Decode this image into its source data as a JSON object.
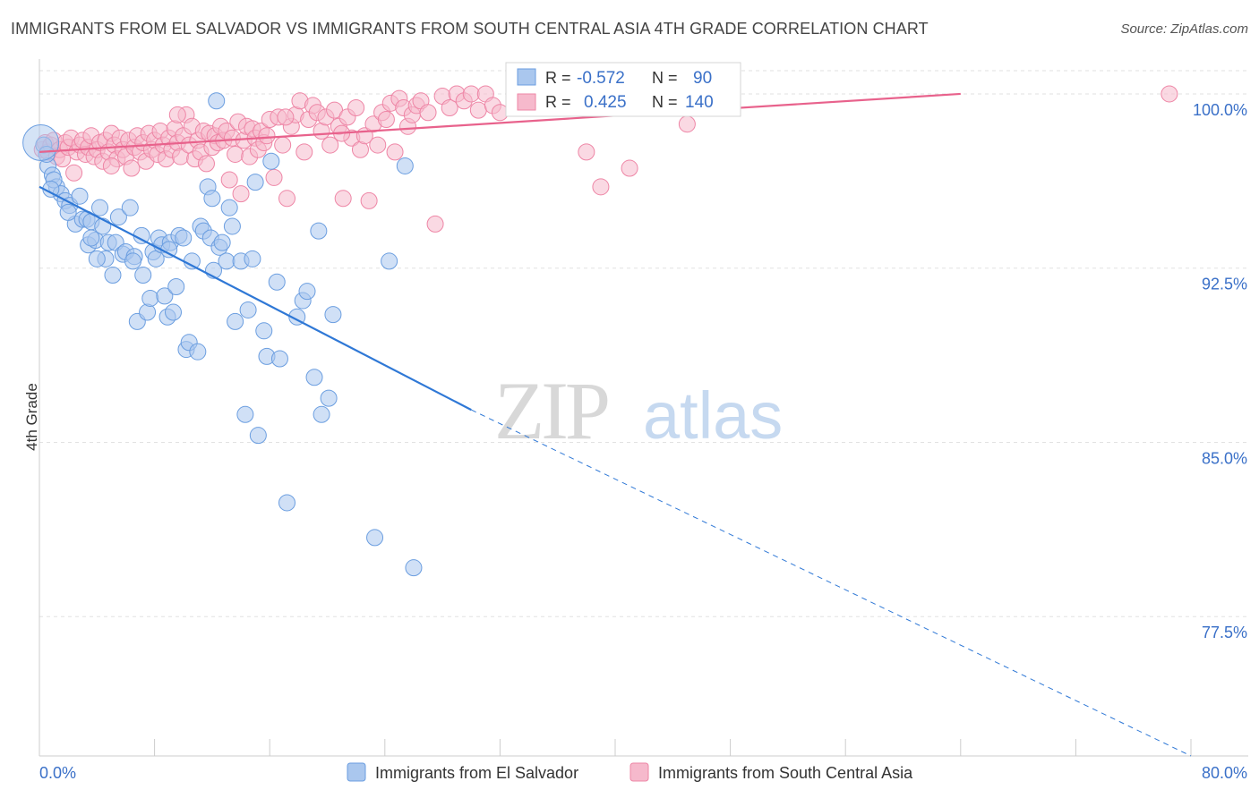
{
  "header": {
    "title": "IMMIGRANTS FROM EL SALVADOR VS IMMIGRANTS FROM SOUTH CENTRAL ASIA 4TH GRADE CORRELATION CHART",
    "source": "Source: ZipAtlas.com"
  },
  "watermark": {
    "zip": "ZIP",
    "atlas": "atlas"
  },
  "stats": {
    "blue": {
      "r_label": "R =",
      "r_value": "-0.572",
      "n_label": "N =",
      "n_value": "90"
    },
    "pink": {
      "r_label": "R =",
      "r_value": "0.425",
      "n_label": "N =",
      "n_value": "140"
    }
  },
  "colors": {
    "blue_fill": "#aac7ee",
    "blue_stroke": "#6b9ee0",
    "blue_line": "#2f78d6",
    "pink_fill": "#f6b9cc",
    "pink_stroke": "#ee86a6",
    "pink_line": "#e8628c",
    "value_text": "#3a70c8",
    "grid": "#e2e2e2"
  },
  "chart_data": {
    "type": "scatter",
    "title": "IMMIGRANTS FROM EL SALVADOR VS IMMIGRANTS FROM SOUTH CENTRAL ASIA 4TH GRADE CORRELATION CHART",
    "xlabel": "",
    "ylabel": "4th Grade",
    "xlim": [
      0,
      80
    ],
    "ylim": [
      71.5,
      101.5
    ],
    "x_tick_labels": [
      "0.0%",
      "80.0%"
    ],
    "y_ticks": [
      77.5,
      85.0,
      92.5,
      100.0
    ],
    "y_tick_labels": [
      "77.5%",
      "85.0%",
      "92.5%",
      "100.0%"
    ],
    "grid": "horizontal dashed",
    "legend_position": "bottom-center",
    "series": [
      {
        "name": "Immigrants from El Salvador",
        "color": "#aac7ee",
        "trend": {
          "x": [
            0,
            30
          ],
          "y": [
            96.0,
            86.4
          ],
          "dashed_to": [
            80,
            71.5
          ]
        },
        "points": [
          [
            0.3,
            97.8
          ],
          [
            0.6,
            96.9
          ],
          [
            0.9,
            96.5
          ],
          [
            1.2,
            96.0
          ],
          [
            1.5,
            95.7
          ],
          [
            1.8,
            95.4
          ],
          [
            2.1,
            95.2
          ],
          [
            2.5,
            94.4
          ],
          [
            2.8,
            95.6
          ],
          [
            3.0,
            94.6
          ],
          [
            3.3,
            94.6
          ],
          [
            3.4,
            93.5
          ],
          [
            3.6,
            94.5
          ],
          [
            3.9,
            93.7
          ],
          [
            4.2,
            95.1
          ],
          [
            4.4,
            94.3
          ],
          [
            4.6,
            92.9
          ],
          [
            4.8,
            93.6
          ],
          [
            5.1,
            92.2
          ],
          [
            5.3,
            93.6
          ],
          [
            5.5,
            94.7
          ],
          [
            5.8,
            93.1
          ],
          [
            6.0,
            93.2
          ],
          [
            6.3,
            95.1
          ],
          [
            6.6,
            93.0
          ],
          [
            6.8,
            90.2
          ],
          [
            7.1,
            93.9
          ],
          [
            7.2,
            92.2
          ],
          [
            7.5,
            90.6
          ],
          [
            7.7,
            91.2
          ],
          [
            7.9,
            93.2
          ],
          [
            8.1,
            92.9
          ],
          [
            8.3,
            93.8
          ],
          [
            8.5,
            93.5
          ],
          [
            8.7,
            91.3
          ],
          [
            8.9,
            90.4
          ],
          [
            9.1,
            93.6
          ],
          [
            9.3,
            90.6
          ],
          [
            9.5,
            91.7
          ],
          [
            9.7,
            93.9
          ],
          [
            10.0,
            93.8
          ],
          [
            10.2,
            89.0
          ],
          [
            10.4,
            89.3
          ],
          [
            10.6,
            92.8
          ],
          [
            11.0,
            88.9
          ],
          [
            11.2,
            94.3
          ],
          [
            11.4,
            94.1
          ],
          [
            11.7,
            96.0
          ],
          [
            11.9,
            93.8
          ],
          [
            12.1,
            92.4
          ],
          [
            12.3,
            99.7
          ],
          [
            12.5,
            93.4
          ],
          [
            12.7,
            93.6
          ],
          [
            13.0,
            92.8
          ],
          [
            13.2,
            95.1
          ],
          [
            13.4,
            94.3
          ],
          [
            13.6,
            90.2
          ],
          [
            14.0,
            92.8
          ],
          [
            14.3,
            86.2
          ],
          [
            14.5,
            90.7
          ],
          [
            14.8,
            92.9
          ],
          [
            15.2,
            85.3
          ],
          [
            15.6,
            89.8
          ],
          [
            15.8,
            88.7
          ],
          [
            16.1,
            97.1
          ],
          [
            16.5,
            91.9
          ],
          [
            16.7,
            88.6
          ],
          [
            17.2,
            82.4
          ],
          [
            17.9,
            90.4
          ],
          [
            18.3,
            91.1
          ],
          [
            18.6,
            91.5
          ],
          [
            19.1,
            87.8
          ],
          [
            19.4,
            94.1
          ],
          [
            19.6,
            86.2
          ],
          [
            20.1,
            86.9
          ],
          [
            20.4,
            90.5
          ],
          [
            23.3,
            80.9
          ],
          [
            24.3,
            92.8
          ],
          [
            25.4,
            96.9
          ],
          [
            26.0,
            79.6
          ],
          [
            0.5,
            97.4
          ],
          [
            1.0,
            96.3
          ],
          [
            2.0,
            94.9
          ],
          [
            4.0,
            92.9
          ],
          [
            6.5,
            92.8
          ],
          [
            9.0,
            93.3
          ],
          [
            12.0,
            95.5
          ],
          [
            15.0,
            96.2
          ],
          [
            0.8,
            95.9
          ],
          [
            3.6,
            93.8
          ]
        ]
      },
      {
        "name": "Immigrants from South Central Asia",
        "color": "#f6b9cc",
        "trend": {
          "x": [
            0,
            64
          ],
          "y": [
            97.5,
            100.0
          ]
        },
        "points": [
          [
            0.2,
            97.6
          ],
          [
            0.4,
            97.9
          ],
          [
            0.6,
            97.5
          ],
          [
            0.8,
            97.8
          ],
          [
            1.0,
            98.0
          ],
          [
            1.2,
            97.3
          ],
          [
            1.4,
            97.6
          ],
          [
            1.6,
            97.2
          ],
          [
            1.8,
            97.9
          ],
          [
            2.0,
            97.7
          ],
          [
            2.2,
            98.1
          ],
          [
            2.4,
            96.6
          ],
          [
            2.6,
            97.5
          ],
          [
            2.8,
            97.8
          ],
          [
            3.0,
            98.0
          ],
          [
            3.2,
            97.4
          ],
          [
            3.4,
            97.7
          ],
          [
            3.6,
            98.2
          ],
          [
            3.8,
            97.3
          ],
          [
            4.0,
            97.6
          ],
          [
            4.2,
            97.9
          ],
          [
            4.4,
            97.1
          ],
          [
            4.6,
            98.0
          ],
          [
            4.8,
            97.5
          ],
          [
            5.0,
            98.3
          ],
          [
            5.2,
            97.8
          ],
          [
            5.4,
            97.2
          ],
          [
            5.6,
            98.1
          ],
          [
            5.8,
            97.6
          ],
          [
            6.0,
            97.3
          ],
          [
            6.2,
            98.0
          ],
          [
            6.4,
            96.8
          ],
          [
            6.6,
            97.7
          ],
          [
            6.8,
            98.2
          ],
          [
            7.0,
            97.5
          ],
          [
            7.2,
            97.9
          ],
          [
            7.4,
            97.1
          ],
          [
            7.6,
            98.3
          ],
          [
            7.8,
            97.6
          ],
          [
            8.0,
            98.0
          ],
          [
            8.2,
            97.4
          ],
          [
            8.4,
            98.4
          ],
          [
            8.6,
            97.8
          ],
          [
            8.8,
            97.2
          ],
          [
            9.0,
            98.1
          ],
          [
            9.2,
            97.6
          ],
          [
            9.4,
            98.5
          ],
          [
            9.6,
            97.9
          ],
          [
            9.8,
            97.3
          ],
          [
            10.0,
            98.2
          ],
          [
            10.2,
            99.1
          ],
          [
            10.4,
            97.8
          ],
          [
            10.6,
            98.6
          ],
          [
            10.8,
            97.2
          ],
          [
            11.0,
            98.0
          ],
          [
            11.2,
            97.5
          ],
          [
            11.4,
            98.4
          ],
          [
            11.6,
            97.0
          ],
          [
            11.8,
            98.3
          ],
          [
            12.0,
            97.7
          ],
          [
            12.2,
            98.2
          ],
          [
            12.4,
            97.9
          ],
          [
            12.6,
            98.6
          ],
          [
            12.8,
            98.0
          ],
          [
            13.0,
            98.4
          ],
          [
            13.2,
            96.3
          ],
          [
            13.4,
            98.1
          ],
          [
            13.6,
            97.4
          ],
          [
            13.8,
            98.8
          ],
          [
            14.0,
            95.7
          ],
          [
            14.2,
            98.0
          ],
          [
            14.4,
            98.6
          ],
          [
            14.6,
            97.3
          ],
          [
            14.8,
            98.5
          ],
          [
            15.0,
            98.1
          ],
          [
            15.2,
            97.6
          ],
          [
            15.4,
            98.4
          ],
          [
            15.6,
            97.9
          ],
          [
            15.8,
            98.2
          ],
          [
            16.0,
            98.9
          ],
          [
            16.3,
            96.4
          ],
          [
            16.6,
            99.0
          ],
          [
            16.9,
            97.8
          ],
          [
            17.2,
            95.5
          ],
          [
            17.5,
            98.6
          ],
          [
            17.8,
            99.1
          ],
          [
            18.1,
            99.7
          ],
          [
            18.4,
            97.5
          ],
          [
            18.7,
            98.9
          ],
          [
            19.0,
            99.5
          ],
          [
            19.3,
            99.2
          ],
          [
            19.6,
            98.4
          ],
          [
            19.9,
            99.0
          ],
          [
            20.2,
            97.8
          ],
          [
            20.5,
            99.3
          ],
          [
            20.8,
            98.6
          ],
          [
            21.1,
            95.5
          ],
          [
            21.4,
            99.0
          ],
          [
            21.7,
            98.1
          ],
          [
            22.0,
            99.4
          ],
          [
            22.3,
            97.6
          ],
          [
            22.6,
            98.2
          ],
          [
            22.9,
            95.4
          ],
          [
            23.2,
            98.7
          ],
          [
            23.5,
            97.8
          ],
          [
            23.8,
            99.2
          ],
          [
            24.1,
            98.9
          ],
          [
            24.4,
            99.6
          ],
          [
            24.7,
            97.5
          ],
          [
            25.0,
            99.8
          ],
          [
            25.3,
            99.4
          ],
          [
            25.6,
            98.6
          ],
          [
            25.9,
            99.1
          ],
          [
            26.2,
            99.5
          ],
          [
            26.5,
            99.7
          ],
          [
            27.0,
            99.2
          ],
          [
            27.5,
            94.4
          ],
          [
            28.0,
            99.9
          ],
          [
            28.5,
            99.4
          ],
          [
            29.0,
            100.0
          ],
          [
            29.5,
            99.7
          ],
          [
            30.0,
            100.0
          ],
          [
            30.5,
            99.3
          ],
          [
            31.0,
            100.0
          ],
          [
            31.5,
            99.5
          ],
          [
            32.0,
            99.2
          ],
          [
            33.0,
            99.8
          ],
          [
            35.0,
            100.0
          ],
          [
            36.0,
            99.8
          ],
          [
            37.0,
            99.6
          ],
          [
            38.0,
            97.5
          ],
          [
            39.0,
            96.0
          ],
          [
            41.0,
            96.8
          ],
          [
            45.0,
            98.7
          ],
          [
            5.0,
            96.9
          ],
          [
            9.6,
            99.1
          ],
          [
            17.1,
            99.0
          ],
          [
            21.0,
            98.3
          ],
          [
            33.6,
            99.8
          ],
          [
            78.5,
            100.0
          ]
        ]
      }
    ]
  }
}
